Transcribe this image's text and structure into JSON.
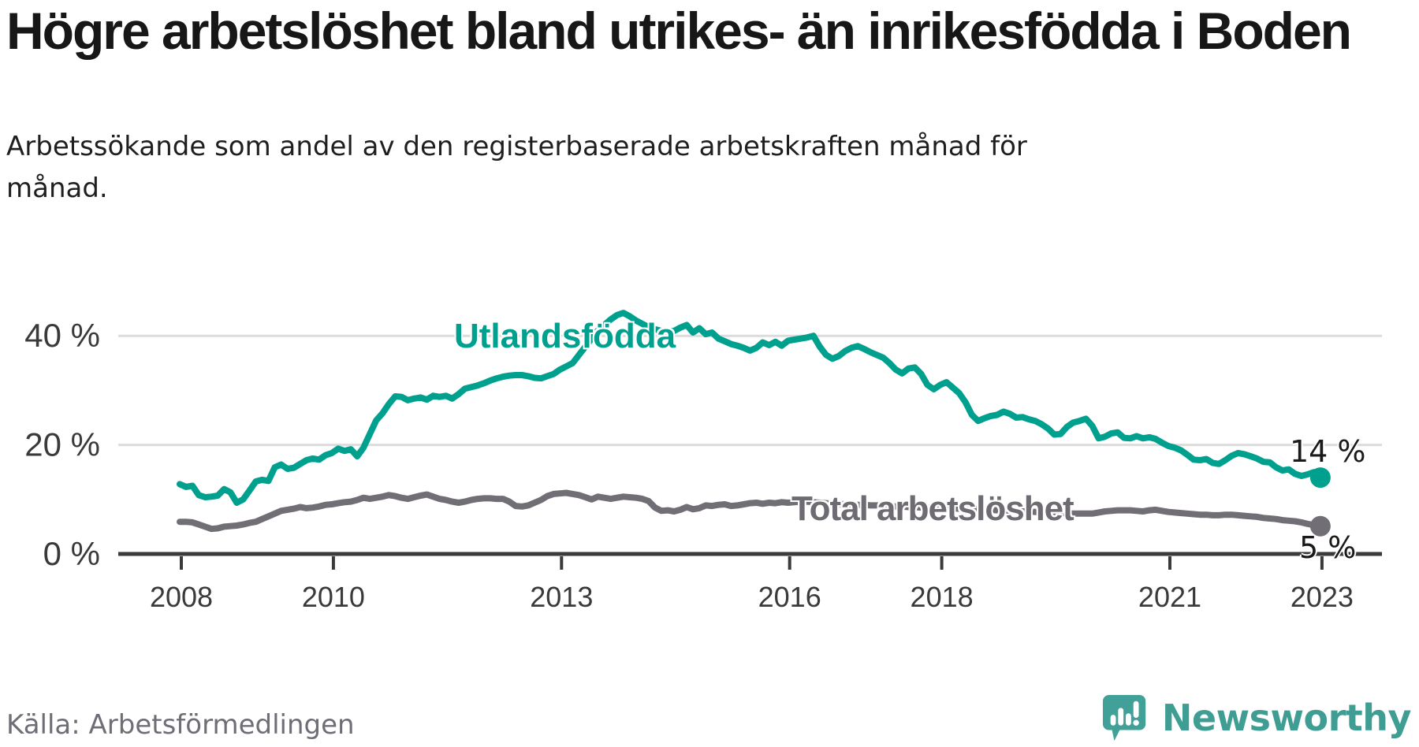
{
  "header": {
    "title": "Högre arbetslöshet bland utrikes- än inrikesfödda i Boden",
    "subtitle": "Arbetssökande som andel av den registerbaserade arbetskraften månad för månad."
  },
  "chart_data": {
    "type": "line",
    "title": "Högre arbetslöshet bland utrikes- än inrikesfödda i Boden",
    "x_interval": "monthly",
    "x_start_year": 2008,
    "x_start_month": 1,
    "xlim": [
      2008,
      2023.17
    ],
    "ylim": [
      0,
      46
    ],
    "grid": "horizontal",
    "legend_position": "inline-labels",
    "yticks": [
      {
        "value": 0,
        "label": "0 %"
      },
      {
        "value": 20,
        "label": "20 %"
      },
      {
        "value": 40,
        "label": "40 %"
      }
    ],
    "xticks": [
      {
        "year": 2008,
        "label": "2008"
      },
      {
        "year": 2010,
        "label": "2010"
      },
      {
        "year": 2013,
        "label": "2013"
      },
      {
        "year": 2016,
        "label": "2016"
      },
      {
        "year": 2018,
        "label": "2018"
      },
      {
        "year": 2021,
        "label": "2021"
      },
      {
        "year": 2023,
        "label": "2023"
      }
    ],
    "series": [
      {
        "name": "Utlandsfödda",
        "color_key": "teal",
        "end_label": "14 %",
        "end_value": 14,
        "values": [
          12.8,
          12.3,
          12.5,
          10.8,
          10.4,
          10.5,
          10.7,
          11.9,
          11.3,
          9.4,
          10.0,
          11.6,
          13.3,
          13.6,
          13.4,
          15.9,
          16.4,
          15.6,
          15.8,
          16.5,
          17.2,
          17.5,
          17.3,
          18.1,
          18.5,
          19.3,
          18.9,
          19.2,
          17.9,
          19.5,
          22.0,
          24.5,
          25.8,
          27.5,
          28.9,
          28.8,
          28.2,
          28.5,
          28.7,
          28.3,
          29.0,
          28.8,
          29.0,
          28.5,
          29.3,
          30.3,
          30.6,
          30.9,
          31.3,
          31.8,
          32.2,
          32.5,
          32.7,
          32.8,
          32.8,
          32.6,
          32.3,
          32.2,
          32.6,
          33.0,
          33.8,
          34.4,
          35.0,
          36.5,
          38.0,
          39.5,
          41.0,
          42.0,
          43.0,
          43.8,
          44.2,
          43.6,
          42.8,
          42.2,
          41.6,
          41.2,
          40.9,
          40.8,
          40.9,
          41.5,
          42.0,
          40.6,
          41.4,
          40.3,
          40.6,
          39.5,
          39.0,
          38.5,
          38.2,
          37.8,
          37.3,
          37.8,
          38.8,
          38.3,
          38.9,
          38.2,
          39.1,
          39.3,
          39.5,
          39.7,
          40.0,
          38.0,
          36.5,
          35.8,
          36.3,
          37.2,
          37.8,
          38.1,
          37.6,
          37.0,
          36.5,
          36.0,
          35.0,
          33.8,
          33.1,
          34.0,
          34.2,
          33.0,
          31.0,
          30.2,
          31.0,
          31.5,
          30.5,
          29.5,
          27.8,
          25.5,
          24.4,
          24.9,
          25.3,
          25.5,
          26.1,
          25.7,
          25.0,
          25.1,
          24.7,
          24.4,
          23.8,
          23.0,
          21.9,
          22.0,
          23.3,
          24.1,
          24.4,
          24.8,
          23.5,
          21.2,
          21.5,
          22.1,
          22.3,
          21.3,
          21.2,
          21.6,
          21.2,
          21.4,
          21.1,
          20.4,
          19.8,
          19.5,
          19.0,
          18.2,
          17.3,
          17.2,
          17.4,
          16.7,
          16.5,
          17.2,
          18.0,
          18.5,
          18.3,
          17.9,
          17.5,
          16.9,
          16.8,
          15.9,
          15.3,
          15.5,
          14.7,
          14.3,
          14.6,
          15.0,
          14.0
        ]
      },
      {
        "name": "Total arbetslöshet",
        "color_key": "gray",
        "end_label": "5 %",
        "end_value": 5,
        "values": [
          5.9,
          5.9,
          5.8,
          5.4,
          5.0,
          4.6,
          4.7,
          5.0,
          5.1,
          5.2,
          5.4,
          5.7,
          5.9,
          6.4,
          6.9,
          7.4,
          7.9,
          8.1,
          8.3,
          8.6,
          8.4,
          8.5,
          8.7,
          9.0,
          9.1,
          9.3,
          9.5,
          9.6,
          9.9,
          10.3,
          10.1,
          10.3,
          10.5,
          10.8,
          10.6,
          10.3,
          10.1,
          10.4,
          10.7,
          10.9,
          10.5,
          10.1,
          9.9,
          9.6,
          9.4,
          9.6,
          9.9,
          10.1,
          10.2,
          10.2,
          10.1,
          10.1,
          9.6,
          8.8,
          8.7,
          8.9,
          9.4,
          9.9,
          10.6,
          11.0,
          11.1,
          11.2,
          11.0,
          10.8,
          10.4,
          10.0,
          10.5,
          10.3,
          10.1,
          10.3,
          10.5,
          10.4,
          10.3,
          10.1,
          9.7,
          8.5,
          7.9,
          8.0,
          7.8,
          8.1,
          8.6,
          8.2,
          8.4,
          8.9,
          8.8,
          9.0,
          9.1,
          8.8,
          8.9,
          9.1,
          9.3,
          9.4,
          9.2,
          9.4,
          9.3,
          9.5,
          9.4,
          9.5,
          9.6,
          9.6,
          9.5,
          9.4,
          9.3,
          9.2,
          9.2,
          9.1,
          9.0,
          9.0,
          9.0,
          8.9,
          8.9,
          8.8,
          8.8,
          8.7,
          8.7,
          8.6,
          8.6,
          8.5,
          8.5,
          8.5,
          8.5,
          8.4,
          8.4,
          8.3,
          8.3,
          8.2,
          8.2,
          8.1,
          8.1,
          8.0,
          8.0,
          7.9,
          7.9,
          7.8,
          7.8,
          7.7,
          7.7,
          7.6,
          7.6,
          7.5,
          7.5,
          7.4,
          7.4,
          7.4,
          7.4,
          7.6,
          7.8,
          7.9,
          8.0,
          8.0,
          8.0,
          7.9,
          7.8,
          8.0,
          8.1,
          7.9,
          7.7,
          7.6,
          7.5,
          7.4,
          7.3,
          7.2,
          7.2,
          7.1,
          7.1,
          7.2,
          7.2,
          7.1,
          7.0,
          6.9,
          6.8,
          6.6,
          6.5,
          6.4,
          6.2,
          6.1,
          6.0,
          5.8,
          5.5,
          5.3,
          5.1
        ]
      }
    ]
  },
  "footer": {
    "source": "Källa: Arbetsförmedlingen",
    "brand": "Newsworthy"
  },
  "colors": {
    "teal": "#00a08e",
    "gray": "#716f75",
    "grid": "#dcdcdc",
    "axis": "#3a3a3a",
    "tick_text": "#3a3a3a",
    "brand_teal": "#41a098"
  }
}
